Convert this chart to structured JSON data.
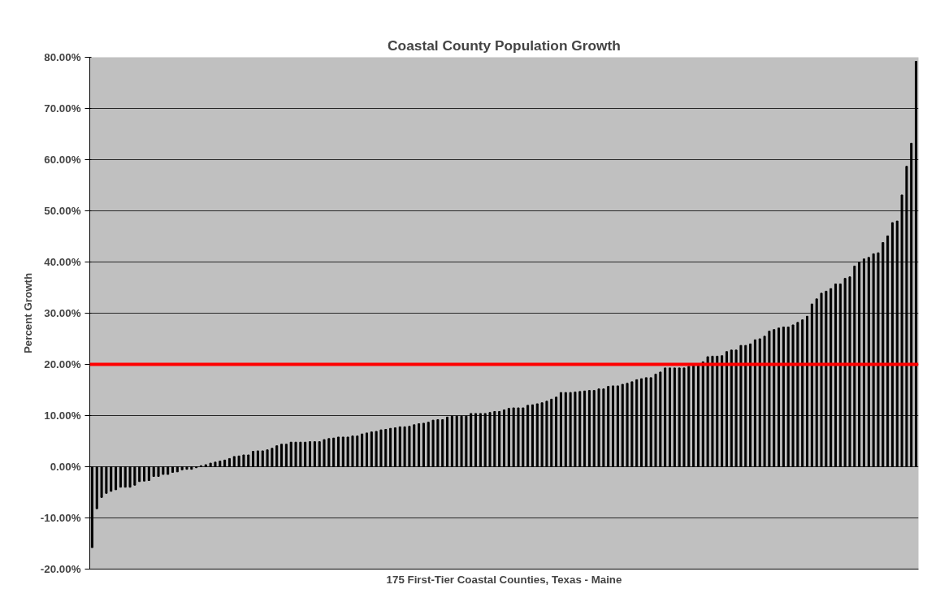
{
  "chart_data": {
    "type": "bar",
    "title": "Coastal County Population Growth",
    "xlabel": "175 First-Tier Coastal Counties, Texas - Maine",
    "ylabel": "Percent Growth",
    "categories": [
      null,
      null,
      null,
      null,
      null,
      null,
      null,
      null,
      null,
      null,
      null,
      null,
      null,
      null,
      null,
      null,
      null,
      null,
      null,
      null,
      null,
      null,
      null,
      null,
      null,
      null,
      null,
      null,
      null,
      null,
      null,
      null,
      null,
      null,
      null,
      null,
      null,
      null,
      null,
      null,
      null,
      null,
      null,
      null,
      null,
      null,
      null,
      null,
      null,
      null,
      null,
      null,
      null,
      null,
      null,
      null,
      null,
      null,
      null,
      null,
      null,
      null,
      null,
      null,
      null,
      null,
      null,
      null,
      null,
      null,
      null,
      null,
      null,
      null,
      null,
      null,
      null,
      null,
      null,
      null,
      null,
      null,
      null,
      null,
      null,
      null,
      null,
      null,
      null,
      null,
      null,
      null,
      null,
      null,
      null,
      null,
      null,
      null,
      null,
      null,
      null,
      null,
      null,
      null,
      null,
      null,
      null,
      null,
      null,
      null,
      null,
      null,
      null,
      null,
      null,
      null,
      null,
      null,
      null,
      null,
      null,
      null,
      null,
      null,
      null,
      null,
      null,
      null,
      null,
      null,
      null,
      null,
      null,
      null,
      null,
      null,
      null,
      null,
      null,
      null,
      null,
      null,
      null,
      null,
      null,
      null,
      null,
      null,
      null,
      null,
      null,
      null,
      null,
      null,
      null,
      null,
      null,
      null,
      null,
      null,
      null,
      null,
      null,
      null,
      null,
      null,
      null,
      null,
      null,
      null,
      null,
      null,
      null,
      null,
      null
    ],
    "values": [
      -15.8,
      -8.2,
      -6.0,
      -5.2,
      -4.8,
      -4.5,
      -4.0,
      -4.0,
      -4.0,
      -3.6,
      -2.9,
      -2.8,
      -2.7,
      -1.9,
      -1.9,
      -1.5,
      -1.5,
      -1.1,
      -1.0,
      -0.6,
      -0.5,
      -0.5,
      -0.2,
      0.2,
      0.4,
      0.7,
      0.9,
      1.1,
      1.3,
      1.6,
      2.0,
      2.1,
      2.3,
      2.3,
      3.0,
      3.1,
      3.1,
      3.3,
      3.6,
      4.1,
      4.4,
      4.4,
      4.8,
      4.8,
      4.8,
      4.8,
      4.9,
      4.9,
      4.9,
      5.3,
      5.5,
      5.6,
      5.8,
      5.8,
      5.8,
      6.0,
      6.0,
      6.4,
      6.6,
      6.8,
      6.9,
      7.2,
      7.3,
      7.5,
      7.6,
      7.8,
      7.8,
      7.9,
      8.2,
      8.4,
      8.5,
      8.7,
      9.1,
      9.2,
      9.2,
      9.7,
      9.9,
      9.9,
      9.9,
      9.9,
      10.4,
      10.4,
      10.4,
      10.4,
      10.6,
      10.8,
      10.8,
      11.1,
      11.4,
      11.5,
      11.5,
      11.5,
      12.0,
      12.1,
      12.3,
      12.5,
      12.8,
      13.2,
      13.6,
      14.5,
      14.5,
      14.5,
      14.6,
      14.7,
      14.8,
      14.9,
      14.9,
      15.2,
      15.2,
      15.7,
      15.8,
      15.8,
      16.1,
      16.3,
      16.6,
      17.0,
      17.2,
      17.4,
      17.4,
      18.1,
      18.5,
      19.3,
      19.3,
      19.3,
      19.3,
      19.3,
      19.6,
      19.7,
      19.7,
      20.5,
      21.5,
      21.6,
      21.6,
      21.7,
      22.5,
      22.8,
      22.8,
      23.7,
      23.7,
      24.0,
      24.8,
      25.0,
      25.5,
      26.5,
      26.8,
      27.1,
      27.3,
      27.3,
      27.7,
      28.2,
      28.7,
      29.4,
      31.8,
      32.8,
      33.9,
      34.3,
      34.8,
      35.7,
      35.7,
      36.8,
      37.1,
      39.2,
      40.0,
      40.6,
      40.9,
      41.6,
      41.8,
      43.8,
      45.1,
      47.7,
      48.0,
      53.1,
      58.7,
      63.2,
      79.2
    ],
    "color": "#000000",
    "ylim": [
      -20,
      80
    ],
    "yticks": [
      {
        "value": -20,
        "label": "-20.00%"
      },
      {
        "value": -10,
        "label": "-10.00%"
      },
      {
        "value": 0,
        "label": "0.00%"
      },
      {
        "value": 10,
        "label": "10.00%"
      },
      {
        "value": 20,
        "label": "20.00%"
      },
      {
        "value": 30,
        "label": "30.00%"
      },
      {
        "value": 40,
        "label": "40.00%"
      },
      {
        "value": 50,
        "label": "50.00%"
      },
      {
        "value": 60,
        "label": "60.00%"
      },
      {
        "value": 70,
        "label": "70.00%"
      },
      {
        "value": 80,
        "label": "80.00%"
      }
    ],
    "grid": "y",
    "ref_lines": [
      {
        "axis": "y",
        "value": 20,
        "color": "#ff0000"
      }
    ]
  }
}
